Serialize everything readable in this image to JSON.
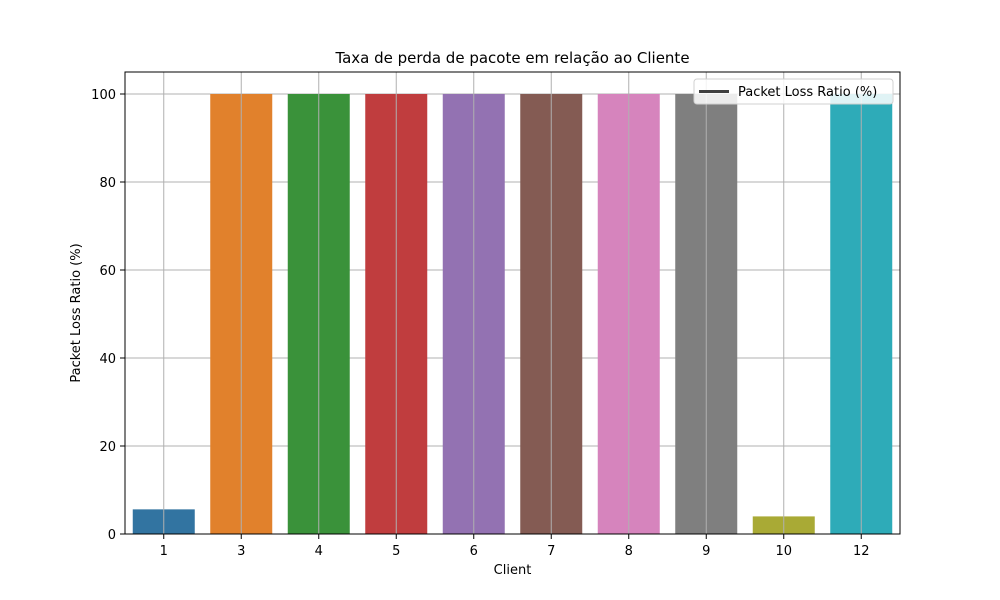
{
  "chart_data": {
    "type": "bar",
    "title": "Taxa de perda de pacote em relação ao Cliente",
    "xlabel": "Client",
    "ylabel": "Packet Loss Ratio (%)",
    "categories": [
      "1",
      "3",
      "4",
      "5",
      "6",
      "7",
      "8",
      "9",
      "10",
      "12"
    ],
    "values": [
      5.6,
      100,
      100,
      100,
      100,
      100,
      100,
      100,
      4.0,
      100
    ],
    "colors": [
      "#3274a1",
      "#e1812c",
      "#3a923a",
      "#c03d3e",
      "#9372b2",
      "#845b53",
      "#d684bd",
      "#7f7f7f",
      "#a9aa35",
      "#2eabb8"
    ],
    "ylim": [
      0,
      105
    ],
    "yticks": [
      0,
      20,
      40,
      60,
      80,
      100
    ],
    "grid": true,
    "legend": {
      "placement": "top-right",
      "entries": [
        "Packet Loss Ratio (%)"
      ],
      "line_color": "#3f3f3f"
    }
  }
}
